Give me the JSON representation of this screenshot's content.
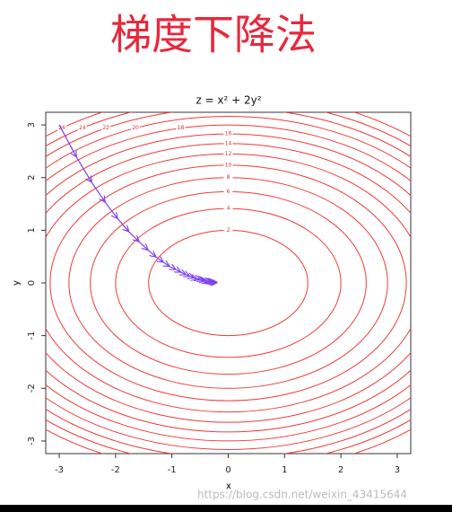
{
  "header": "梯度下降法",
  "watermark": "https://blog.csdn.net/weixin_43415644",
  "chart_data": {
    "type": "contour",
    "title": "z = x² + 2y²",
    "x_label": "x",
    "y_label": "y",
    "xlim": [
      -3.24,
      3.24
    ],
    "ylim": [
      -3.24,
      3.24
    ],
    "xticks": [
      -3,
      -2,
      -1,
      0,
      1,
      2,
      3
    ],
    "yticks": [
      -3,
      -2,
      -1,
      0,
      1,
      2,
      3
    ],
    "levels": [
      2,
      4,
      6,
      8,
      10,
      12,
      14,
      16,
      18,
      20,
      22,
      24,
      26
    ],
    "contour_color": "#f03a3a",
    "path": {
      "color": "#7a3cf0",
      "x": [
        -3,
        -2.7,
        -2.43,
        -2.19,
        -1.97,
        -1.77,
        -1.59,
        -1.43,
        -1.29,
        -1.16,
        -1.05,
        -0.94,
        -0.85,
        -0.76,
        -0.69,
        -0.62,
        -0.56,
        -0.5,
        -0.45,
        -0.41,
        -0.37,
        -0.33,
        -0.3,
        -0.27,
        -0.24,
        -0.22,
        -0.2
      ],
      "y": [
        3,
        2.4,
        1.92,
        1.54,
        1.23,
        0.98,
        0.79,
        0.63,
        0.5,
        0.4,
        0.32,
        0.26,
        0.21,
        0.16,
        0.13,
        0.1,
        0.08,
        0.07,
        0.05,
        0.04,
        0.03,
        0.03,
        0.02,
        0.02,
        0.01,
        0.01,
        0.01
      ]
    }
  }
}
